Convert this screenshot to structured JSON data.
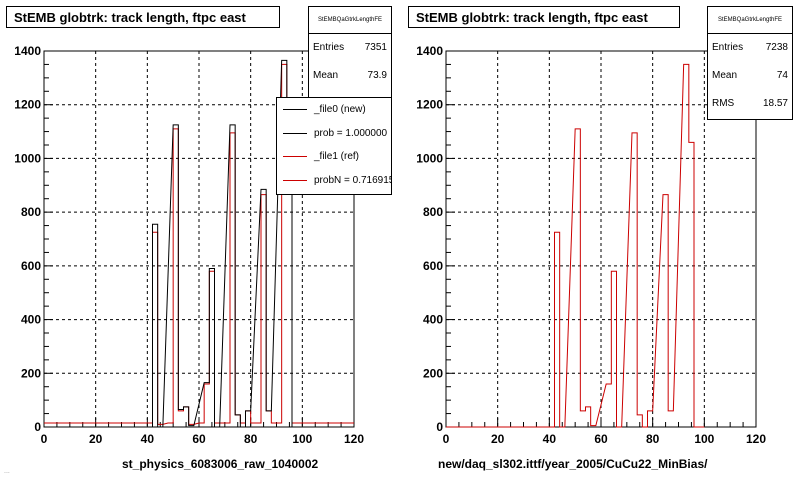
{
  "charts": [
    {
      "title": "StEMB globtrk: track length, ftpc east",
      "xlabel": "st_physics_6083006_raw_1040002",
      "stats": {
        "name": "StEMBQaGtrkLengthFE",
        "rows": [
          {
            "key": "Entries",
            "value": "7351"
          },
          {
            "key": "Mean",
            "value": "73.9"
          }
        ]
      },
      "legend": [
        {
          "label": "_file0 (new)",
          "color": "#000000"
        },
        {
          "label": "prob = 1.000000",
          "color": "#000000"
        },
        {
          "label": "_file1 (ref)",
          "color": "#cc0000"
        },
        {
          "label": "probN = 0.716915",
          "color": "#cc0000"
        }
      ]
    },
    {
      "title": "StEMB globtrk: track length, ftpc east",
      "xlabel": "new/daq_sl302.ittf/year_2005/CuCu22_MinBias/",
      "stats": {
        "name": "StEMBQaGtrkLengthFE",
        "rows": [
          {
            "key": "Entries",
            "value": "7238"
          },
          {
            "key": "Mean",
            "value": "74"
          },
          {
            "key": "RMS",
            "value": "18.57"
          }
        ]
      }
    }
  ],
  "footnote": "...",
  "chart_data": [
    {
      "type": "line",
      "xlim": [
        0,
        120
      ],
      "ylim": [
        0,
        1400
      ],
      "grid": true,
      "x_ticks": [
        "0",
        "20",
        "40",
        "60",
        "80",
        "100",
        "120"
      ],
      "y_ticks": [
        "0",
        "200",
        "400",
        "600",
        "800",
        "1000",
        "1200",
        "1400"
      ],
      "series": [
        {
          "name": "_file0 (new)",
          "color": "#000000",
          "bins": [
            [
              0,
              42,
              0
            ],
            [
              42,
              44,
              755
            ],
            [
              44,
              46,
              0
            ],
            [
              50,
              52,
              1125
            ],
            [
              52,
              54,
              65
            ],
            [
              54,
              56,
              75
            ],
            [
              56,
              58,
              5
            ],
            [
              62,
              64,
              165
            ],
            [
              64,
              66,
              590
            ],
            [
              66,
              68,
              0
            ],
            [
              72,
              74,
              1125
            ],
            [
              74,
              76,
              45
            ],
            [
              76,
              78,
              0
            ],
            [
              78,
              80,
              60
            ],
            [
              84,
              86,
              885
            ],
            [
              86,
              88,
              60
            ],
            [
              92,
              94,
              1365
            ],
            [
              94,
              96,
              1060
            ],
            [
              96,
              100,
              0
            ]
          ]
        },
        {
          "name": "_file1 (ref)",
          "color": "#cc0000",
          "bins": [
            [
              0,
              42,
              15
            ],
            [
              42,
              44,
              725
            ],
            [
              44,
              46,
              10
            ],
            [
              48,
              50,
              15
            ],
            [
              50,
              52,
              1110
            ],
            [
              52,
              54,
              60
            ],
            [
              54,
              56,
              75
            ],
            [
              56,
              58,
              10
            ],
            [
              60,
              62,
              15
            ],
            [
              62,
              64,
              160
            ],
            [
              64,
              66,
              580
            ],
            [
              66,
              68,
              15
            ],
            [
              70,
              72,
              15
            ],
            [
              72,
              74,
              1095
            ],
            [
              74,
              76,
              45
            ],
            [
              76,
              78,
              15
            ],
            [
              78,
              80,
              60
            ],
            [
              80,
              84,
              15
            ],
            [
              84,
              86,
              865
            ],
            [
              86,
              88,
              60
            ],
            [
              88,
              92,
              15
            ],
            [
              92,
              94,
              1350
            ],
            [
              94,
              96,
              1060
            ],
            [
              96,
              120,
              15
            ]
          ]
        }
      ]
    },
    {
      "type": "line",
      "xlim": [
        0,
        120
      ],
      "ylim": [
        0,
        1400
      ],
      "grid": true,
      "x_ticks": [
        "0",
        "20",
        "40",
        "60",
        "80",
        "100",
        "120"
      ],
      "y_ticks": [
        "0",
        "200",
        "400",
        "600",
        "800",
        "1000",
        "1200",
        "1400"
      ],
      "series": [
        {
          "color": "#cc0000",
          "bins": [
            [
              0,
              42,
              0
            ],
            [
              42,
              44,
              725
            ],
            [
              44,
              46,
              0
            ],
            [
              50,
              52,
              1110
            ],
            [
              52,
              54,
              60
            ],
            [
              54,
              56,
              75
            ],
            [
              56,
              58,
              5
            ],
            [
              62,
              64,
              160
            ],
            [
              64,
              66,
              580
            ],
            [
              66,
              68,
              0
            ],
            [
              72,
              74,
              1095
            ],
            [
              74,
              76,
              45
            ],
            [
              76,
              78,
              0
            ],
            [
              78,
              80,
              60
            ],
            [
              84,
              86,
              865
            ],
            [
              86,
              88,
              60
            ],
            [
              92,
              94,
              1350
            ],
            [
              94,
              96,
              1060
            ],
            [
              96,
              100,
              0
            ]
          ]
        }
      ]
    }
  ]
}
